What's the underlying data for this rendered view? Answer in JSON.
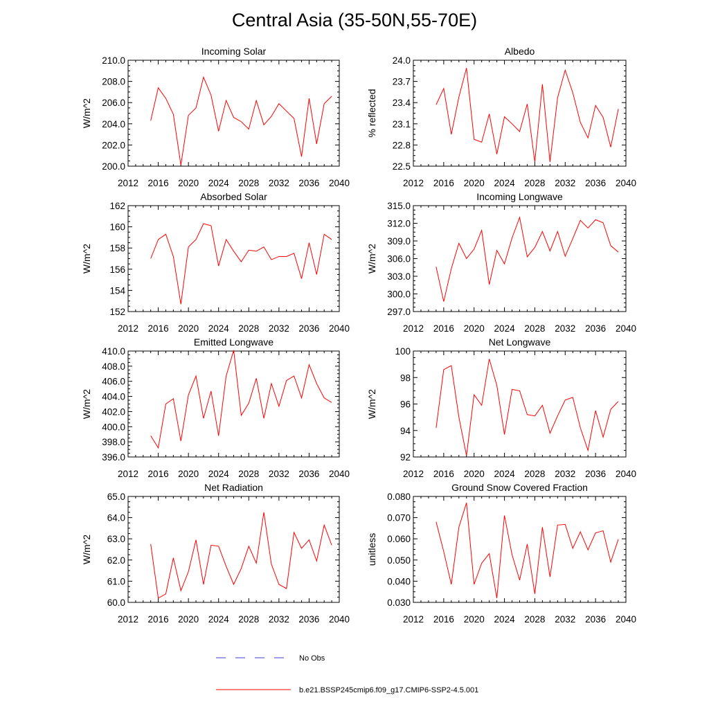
{
  "figure": {
    "title": "Central Asia (35-50N,55-70E)",
    "legend": {
      "obs_label": "No Obs",
      "model_label": "b.e21.BSSP245cmip6.f09_g17.CMIP6-SSP2-4.5.001",
      "obs_color": "#3b3bd6",
      "model_color": "#ff0000"
    },
    "series_color": "#ff0000"
  },
  "chart_data": [
    {
      "type": "line",
      "title": "Incoming Solar",
      "ylabel": "W/m^2",
      "xlim": [
        2012,
        2040
      ],
      "xticks": [
        2012,
        2016,
        2020,
        2024,
        2028,
        2032,
        2036,
        2040
      ],
      "ylim": [
        200,
        210
      ],
      "yticks": [
        200,
        202,
        204,
        206,
        208,
        210
      ],
      "ydecimals": 1,
      "x": [
        2015,
        2016,
        2017,
        2018,
        2019,
        2020,
        2021,
        2022,
        2023,
        2024,
        2025,
        2026,
        2027,
        2028,
        2029,
        2030,
        2031,
        2032,
        2033,
        2034,
        2035,
        2036,
        2037,
        2038,
        2039
      ],
      "y": [
        204.3,
        207.4,
        206.4,
        204.9,
        200.1,
        204.8,
        205.5,
        208.4,
        206.7,
        203.3,
        206.2,
        204.6,
        204.2,
        203.5,
        206.2,
        203.9,
        204.7,
        205.9,
        205.2,
        204.5,
        200.9,
        206.4,
        202.1,
        205.9,
        206.6
      ]
    },
    {
      "type": "line",
      "title": "Albedo",
      "ylabel": "% reflected",
      "xlim": [
        2012,
        2040
      ],
      "xticks": [
        2012,
        2016,
        2020,
        2024,
        2028,
        2032,
        2036,
        2040
      ],
      "ylim": [
        22.5,
        24.0
      ],
      "yticks": [
        22.5,
        22.8,
        23.1,
        23.4,
        23.7,
        24.0
      ],
      "ydecimals": 1,
      "x": [
        2015,
        2016,
        2017,
        2018,
        2019,
        2020,
        2021,
        2022,
        2023,
        2024,
        2025,
        2026,
        2027,
        2028,
        2029,
        2030,
        2031,
        2032,
        2033,
        2034,
        2035,
        2036,
        2037,
        2038,
        2039
      ],
      "y": [
        23.37,
        23.6,
        22.95,
        23.48,
        23.89,
        22.88,
        22.84,
        23.24,
        22.67,
        23.2,
        23.1,
        22.99,
        23.38,
        22.56,
        23.66,
        22.56,
        23.47,
        23.86,
        23.54,
        23.12,
        22.9,
        23.36,
        23.19,
        22.77,
        23.31
      ]
    },
    {
      "type": "line",
      "title": "Absorbed Solar",
      "ylabel": "W/m^2",
      "xlim": [
        2012,
        2040
      ],
      "xticks": [
        2012,
        2016,
        2020,
        2024,
        2028,
        2032,
        2036,
        2040
      ],
      "ylim": [
        152,
        162
      ],
      "yticks": [
        152,
        154,
        156,
        158,
        160,
        162
      ],
      "ydecimals": 0,
      "x": [
        2015,
        2016,
        2017,
        2018,
        2019,
        2020,
        2021,
        2022,
        2023,
        2024,
        2025,
        2026,
        2027,
        2028,
        2029,
        2030,
        2031,
        2032,
        2033,
        2034,
        2035,
        2036,
        2037,
        2038,
        2039
      ],
      "y": [
        157.0,
        158.8,
        159.3,
        157.2,
        152.7,
        158.1,
        158.8,
        160.3,
        160.1,
        156.3,
        158.8,
        157.7,
        156.7,
        157.8,
        157.7,
        158.1,
        156.9,
        157.2,
        157.2,
        157.5,
        155.1,
        158.5,
        155.5,
        159.3,
        158.8
      ]
    },
    {
      "type": "line",
      "title": "Incoming Longwave",
      "ylabel": "W/m^2",
      "xlim": [
        2012,
        2040
      ],
      "xticks": [
        2012,
        2016,
        2020,
        2024,
        2028,
        2032,
        2036,
        2040
      ],
      "ylim": [
        297,
        315
      ],
      "yticks": [
        297,
        300,
        303,
        306,
        309,
        312,
        315
      ],
      "ydecimals": 1,
      "x": [
        2015,
        2016,
        2017,
        2018,
        2019,
        2020,
        2021,
        2022,
        2023,
        2024,
        2025,
        2026,
        2027,
        2028,
        2029,
        2030,
        2031,
        2032,
        2033,
        2034,
        2035,
        2036,
        2037,
        2038,
        2039
      ],
      "y": [
        304.6,
        298.7,
        304.3,
        308.6,
        306.0,
        307.6,
        310.8,
        301.6,
        307.4,
        305.1,
        309.5,
        313.0,
        306.3,
        307.9,
        310.6,
        307.3,
        310.6,
        306.4,
        309.4,
        312.5,
        311.2,
        312.6,
        312.1,
        308.2,
        307.1
      ]
    },
    {
      "type": "line",
      "title": "Emitted Longwave",
      "ylabel": "W/m^2",
      "xlim": [
        2012,
        2040
      ],
      "xticks": [
        2012,
        2016,
        2020,
        2024,
        2028,
        2032,
        2036,
        2040
      ],
      "ylim": [
        396,
        410
      ],
      "yticks": [
        396,
        398,
        400,
        402,
        404,
        406,
        408,
        410
      ],
      "ydecimals": 1,
      "x": [
        2015,
        2016,
        2017,
        2018,
        2019,
        2020,
        2021,
        2022,
        2023,
        2024,
        2025,
        2026,
        2027,
        2028,
        2029,
        2030,
        2031,
        2032,
        2033,
        2034,
        2035,
        2036,
        2037,
        2038,
        2039
      ],
      "y": [
        398.8,
        397.2,
        403.0,
        403.7,
        398.1,
        404.2,
        406.7,
        401.1,
        404.7,
        398.8,
        406.7,
        410.1,
        401.5,
        403.1,
        406.4,
        401.1,
        405.7,
        402.7,
        406.1,
        406.7,
        403.8,
        408.2,
        405.7,
        403.8,
        403.2
      ]
    },
    {
      "type": "line",
      "title": "Net Longwave",
      "ylabel": "W/m^2",
      "xlim": [
        2012,
        2040
      ],
      "xticks": [
        2012,
        2016,
        2020,
        2024,
        2028,
        2032,
        2036,
        2040
      ],
      "ylim": [
        92,
        100
      ],
      "yticks": [
        92,
        94,
        96,
        98,
        100
      ],
      "ydecimals": 0,
      "x": [
        2015,
        2016,
        2017,
        2018,
        2019,
        2020,
        2021,
        2022,
        2023,
        2024,
        2025,
        2026,
        2027,
        2028,
        2029,
        2030,
        2031,
        2032,
        2033,
        2034,
        2035,
        2036,
        2037,
        2038,
        2039
      ],
      "y": [
        94.2,
        98.6,
        98.9,
        95.0,
        92.1,
        96.7,
        95.9,
        99.4,
        97.4,
        93.7,
        97.1,
        97.0,
        95.2,
        95.1,
        95.9,
        93.8,
        95.1,
        96.3,
        96.5,
        94.2,
        92.5,
        95.5,
        93.5,
        95.6,
        96.2
      ]
    },
    {
      "type": "line",
      "title": "Net Radiation",
      "ylabel": "W/m^2",
      "xlim": [
        2012,
        2040
      ],
      "xticks": [
        2012,
        2016,
        2020,
        2024,
        2028,
        2032,
        2036,
        2040
      ],
      "ylim": [
        60,
        65
      ],
      "yticks": [
        60,
        61,
        62,
        63,
        64,
        65
      ],
      "ydecimals": 1,
      "x": [
        2015,
        2016,
        2017,
        2018,
        2019,
        2020,
        2021,
        2022,
        2023,
        2024,
        2025,
        2026,
        2027,
        2028,
        2029,
        2030,
        2031,
        2032,
        2033,
        2034,
        2035,
        2036,
        2037,
        2038,
        2039
      ],
      "y": [
        62.75,
        60.2,
        60.4,
        62.1,
        60.55,
        61.45,
        62.95,
        60.85,
        62.7,
        62.65,
        61.7,
        60.85,
        61.6,
        62.65,
        61.85,
        64.25,
        61.8,
        60.85,
        60.65,
        63.3,
        62.55,
        62.95,
        61.95,
        63.65,
        62.7
      ]
    },
    {
      "type": "line",
      "title": "Ground Snow Covered Fraction",
      "ylabel": "unitless",
      "xlim": [
        2012,
        2040
      ],
      "xticks": [
        2012,
        2016,
        2020,
        2024,
        2028,
        2032,
        2036,
        2040
      ],
      "ylim": [
        0.03,
        0.08
      ],
      "yticks": [
        0.03,
        0.04,
        0.05,
        0.06,
        0.07,
        0.08
      ],
      "ydecimals": 3,
      "x": [
        2015,
        2016,
        2017,
        2018,
        2019,
        2020,
        2021,
        2022,
        2023,
        2024,
        2025,
        2026,
        2027,
        2028,
        2029,
        2030,
        2031,
        2032,
        2033,
        2034,
        2035,
        2036,
        2037,
        2038,
        2039
      ],
      "y": [
        0.068,
        0.054,
        0.0385,
        0.0655,
        0.077,
        0.0385,
        0.0485,
        0.053,
        0.032,
        0.071,
        0.0525,
        0.0405,
        0.0575,
        0.034,
        0.0655,
        0.042,
        0.0665,
        0.0668,
        0.0555,
        0.0633,
        0.0548,
        0.0628,
        0.0638,
        0.049,
        0.0598
      ]
    }
  ]
}
